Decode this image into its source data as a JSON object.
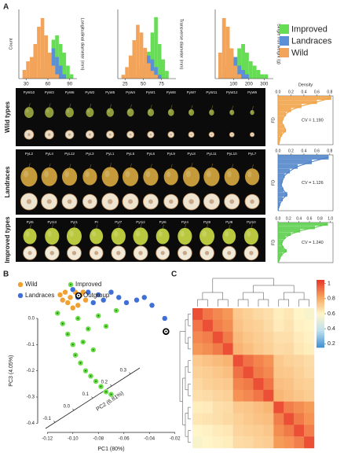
{
  "panel_labels": [
    "A",
    "B",
    "C"
  ],
  "fruit_photos": [
    {
      "label": "Wild types",
      "ids": [
        "PyW10",
        "PyW3",
        "PyW6",
        "PyW2",
        "PyW5",
        "PyW4",
        "PyW1",
        "PyW8",
        "PyW7",
        "PyW11",
        "PyW12",
        "PyW9"
      ]
    },
    {
      "label": "Landraces",
      "ids": [
        "PyL2",
        "PyL4",
        "PyL12",
        "PyL3",
        "PyL1",
        "PyL5",
        "PyL6",
        "PyL9",
        "PyL8",
        "PyL11",
        "PyL10",
        "PyL7"
      ]
    },
    {
      "label": "Improved types",
      "ids": [
        "PyI5",
        "PyI13",
        "PyI1",
        "PI",
        "PyI7",
        "PyI12",
        "PyI6",
        "PyI4",
        "PyI9",
        "PyI8",
        "PyI10"
      ]
    }
  ],
  "chart_data": [
    {
      "type": "histogram",
      "ylabel": "Count",
      "series": [
        {
          "name": "Improved",
          "color": "#66dd55"
        },
        {
          "name": "Landraces",
          "color": "#5b8fd8"
        },
        {
          "name": "Wild",
          "color": "#f2a55a"
        }
      ],
      "panels": [
        {
          "label": "Longitudinal diameter (mm)",
          "xlim": [
            20,
            100
          ],
          "xticks": [
            30,
            60,
            90
          ],
          "ylim": [
            0,
            16
          ],
          "bins": [
            25,
            30,
            35,
            40,
            45,
            50,
            55,
            60,
            65,
            70,
            75,
            80,
            85,
            90,
            95
          ],
          "counts": [
            [
              0,
              0,
              0,
              0,
              0,
              0,
              2,
              5,
              9,
              10,
              8,
              6,
              3,
              1
            ],
            [
              0,
              0,
              0,
              0,
              0,
              2,
              4,
              6,
              7,
              5,
              3,
              1,
              0,
              0
            ],
            [
              2,
              4,
              5,
              8,
              12,
              14,
              10,
              6,
              3,
              1,
              0,
              0,
              0,
              0
            ]
          ]
        },
        {
          "label": "Transverse diameter (mm)",
          "xlim": [
            15,
            95
          ],
          "xticks": [
            25,
            50,
            75
          ],
          "ylim": [
            0,
            18
          ],
          "bins": [
            20,
            25,
            30,
            35,
            40,
            45,
            50,
            55,
            60,
            65,
            70,
            75,
            80,
            85,
            90
          ],
          "counts": [
            [
              0,
              0,
              0,
              0,
              0,
              2,
              4,
              7,
              12,
              16,
              9,
              5,
              2,
              0
            ],
            [
              0,
              0,
              0,
              0,
              1,
              3,
              5,
              6,
              5,
              3,
              1,
              0,
              0,
              0
            ],
            [
              1,
              3,
              6,
              10,
              14,
              12,
              8,
              4,
              2,
              1,
              0,
              0,
              0,
              0
            ]
          ]
        },
        {
          "label": "Single fruit weight (g)",
          "xlim": [
            -20,
            360
          ],
          "xticks": [
            100,
            200,
            300
          ],
          "ylim": [
            0,
            16
          ],
          "bins": [
            0,
            25,
            50,
            75,
            100,
            125,
            150,
            175,
            200,
            225,
            250,
            275,
            300,
            325,
            350
          ],
          "counts": [
            [
              0,
              0,
              1,
              3,
              5,
              7,
              8,
              6,
              4,
              3,
              2,
              1,
              1,
              0
            ],
            [
              0,
              1,
              3,
              6,
              5,
              3,
              2,
              1,
              0,
              0,
              0,
              0,
              0,
              0
            ],
            [
              6,
              14,
              12,
              7,
              3,
              1,
              0,
              0,
              0,
              0,
              0,
              0,
              0,
              0
            ]
          ]
        }
      ]
    },
    {
      "type": "density",
      "xlabel": "Density",
      "ylabel": "FD",
      "panels": [
        {
          "color": "#f0a040",
          "xlim": [
            0,
            0.85
          ],
          "xticks": [
            {
              "value": 0,
              "label": "0.0"
            },
            0.2,
            0.4,
            0.6,
            0.8
          ],
          "values": [
            0.82,
            0.6,
            0.36,
            0.2,
            0.12,
            0.08,
            0.06,
            0.09,
            0.12,
            0.06,
            0.03,
            0.02
          ],
          "annotation": "CV = 1.190"
        },
        {
          "color": "#4a80c8",
          "xlim": [
            0,
            0.85
          ],
          "xticks": [
            {
              "value": 0,
              "label": "0.0"
            },
            0.2,
            0.4,
            0.6,
            0.8
          ],
          "values": [
            0.78,
            0.52,
            0.3,
            0.18,
            0.1,
            0.07,
            0.05,
            0.08,
            0.14,
            0.07,
            0.03,
            0.01
          ],
          "annotation": "CV = 1.126"
        },
        {
          "color": "#55cc44",
          "xlim": [
            0,
            1.05
          ],
          "xticks": [
            {
              "value": 0,
              "label": "0.0"
            },
            0.2,
            0.4,
            0.6,
            0.8,
            {
              "value": 1,
              "label": "1.0"
            }
          ],
          "values": [
            0.95,
            0.7,
            0.42,
            0.24,
            0.14,
            0.09,
            0.07,
            0.1,
            0.16,
            0.08,
            0.04,
            0.02
          ],
          "annotation": "CV = 1.240"
        }
      ]
    },
    {
      "type": "scatter",
      "xlabel": "PC1 (80%)",
      "ylabel": "PC3 (4.05%)",
      "zlabel": "PC2 (6.81%)",
      "xlim": [
        -0.13,
        -0.01
      ],
      "xticks": [
        -0.12,
        {
          "value": -0.1,
          "label": "-0.10"
        },
        -0.08,
        -0.06,
        -0.04,
        -0.02
      ],
      "ylim": [
        -0.42,
        0.12
      ],
      "yticks": [
        -0.4,
        -0.3,
        -0.2,
        -0.1,
        {
          "value": 0,
          "label": "0.0"
        }
      ],
      "zlim": [
        -0.15,
        0.35
      ],
      "zticks": [
        -0.1,
        {
          "value": 0,
          "label": "0.0"
        },
        0.1,
        0.2,
        0.3
      ],
      "series": [
        {
          "name": "Wild",
          "color": "#f0a030",
          "x": [
            -0.11,
            -0.106,
            -0.102,
            -0.098,
            -0.094,
            -0.09,
            -0.104,
            -0.096,
            -0.1,
            -0.108,
            -0.092
          ],
          "y": [
            0.09,
            0.1,
            0.08,
            0.1,
            0.09,
            0.07,
            0.06,
            0.05,
            0.04,
            0.07,
            0.1
          ]
        },
        {
          "name": "Improved",
          "color": "#66dd44",
          "x": [
            -0.112,
            -0.108,
            -0.104,
            -0.1,
            -0.098,
            -0.094,
            -0.09,
            -0.086,
            -0.082,
            -0.078,
            -0.074,
            -0.07,
            -0.096,
            -0.088,
            -0.08,
            -0.074,
            -0.066,
            -0.092,
            -0.084
          ],
          "y": [
            0.02,
            -0.02,
            -0.06,
            -0.1,
            -0.14,
            -0.17,
            -0.2,
            -0.22,
            -0.24,
            -0.26,
            -0.28,
            -0.29,
            0,
            -0.04,
            0.01,
            -0.03,
            0.03,
            -0.09,
            -0.12
          ]
        },
        {
          "name": "Landraces",
          "color": "#3d6fd6",
          "x": [
            -0.1,
            -0.096,
            -0.088,
            -0.084,
            -0.08,
            -0.076,
            -0.07,
            -0.064,
            -0.058,
            -0.05,
            -0.044,
            -0.038,
            -0.028
          ],
          "y": [
            0.11,
            0.08,
            0.1,
            0.06,
            0.09,
            0.07,
            0.1,
            0.08,
            0.06,
            0.07,
            0.08,
            0.05,
            0
          ]
        },
        {
          "name": "Outgroup",
          "color": "#000000",
          "x": [
            -0.027
          ],
          "y": [
            -0.05
          ]
        }
      ]
    },
    {
      "type": "heatmap",
      "clim": [
        0.15,
        1.05
      ],
      "cticks": [
        0.2,
        0.4,
        0.6,
        0.8,
        1
      ],
      "colors": [
        "#3d8fd0",
        "#bfe0ee",
        "#fff5c8",
        "#f7a35c",
        "#e8372a"
      ],
      "values": [
        [
          1,
          0.92,
          0.88,
          0.85,
          0.72,
          0.7,
          0.68,
          0.66,
          0.62,
          0.64,
          0.6,
          0.58
        ],
        [
          0.92,
          1,
          0.9,
          0.87,
          0.74,
          0.71,
          0.7,
          0.67,
          0.63,
          0.65,
          0.61,
          0.6
        ],
        [
          0.88,
          0.9,
          1,
          0.91,
          0.76,
          0.73,
          0.71,
          0.69,
          0.66,
          0.66,
          0.63,
          0.61
        ],
        [
          0.85,
          0.87,
          0.91,
          1,
          0.78,
          0.75,
          0.72,
          0.7,
          0.67,
          0.68,
          0.64,
          0.62
        ],
        [
          0.72,
          0.74,
          0.76,
          0.78,
          1,
          0.93,
          0.89,
          0.86,
          0.72,
          0.7,
          0.69,
          0.67
        ],
        [
          0.7,
          0.71,
          0.73,
          0.75,
          0.93,
          1,
          0.91,
          0.88,
          0.73,
          0.72,
          0.7,
          0.68
        ],
        [
          0.68,
          0.7,
          0.71,
          0.72,
          0.89,
          0.91,
          1,
          0.92,
          0.75,
          0.74,
          0.71,
          0.7
        ],
        [
          0.66,
          0.67,
          0.69,
          0.7,
          0.86,
          0.88,
          0.92,
          1,
          0.77,
          0.75,
          0.73,
          0.71
        ],
        [
          0.62,
          0.63,
          0.66,
          0.67,
          0.72,
          0.73,
          0.75,
          0.77,
          1,
          0.9,
          0.87,
          0.84
        ],
        [
          0.64,
          0.65,
          0.66,
          0.68,
          0.7,
          0.72,
          0.74,
          0.75,
          0.9,
          1,
          0.91,
          0.86
        ],
        [
          0.6,
          0.61,
          0.63,
          0.64,
          0.69,
          0.7,
          0.71,
          0.73,
          0.87,
          0.91,
          1,
          0.9
        ],
        [
          0.58,
          0.6,
          0.61,
          0.62,
          0.67,
          0.68,
          0.7,
          0.71,
          0.84,
          0.86,
          0.9,
          1
        ]
      ]
    }
  ]
}
